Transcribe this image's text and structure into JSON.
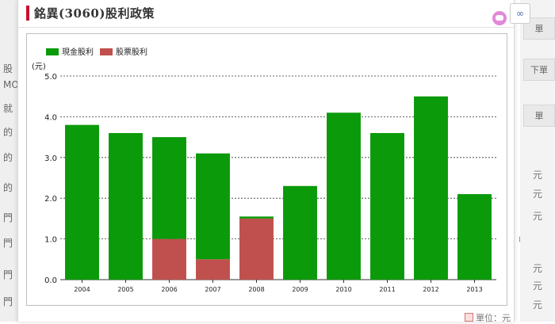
{
  "page": {
    "title": "銘異(3060)股利政策",
    "unit_note": "單位：元"
  },
  "background": {
    "left_fragments": [
      "股",
      "MO",
      "就",
      "的",
      "的",
      "的",
      "門",
      "門",
      "門",
      "門"
    ],
    "right_tabs": [
      "單",
      "下單",
      "單"
    ],
    "right_glyphs": [
      "元",
      "元",
      "元",
      "元",
      "元",
      "元"
    ]
  },
  "icons": {
    "chat": "chat-bubble-icon",
    "toolbar": "binoculars-icon",
    "unit": "table-icon"
  },
  "colors": {
    "cash": "#0a9a0a",
    "stock": "#c0504d",
    "accent": "#c8102e"
  },
  "chart_data": {
    "type": "bar",
    "stacked": true,
    "categories": [
      "2004",
      "2005",
      "2006",
      "2007",
      "2008",
      "2009",
      "2010",
      "2011",
      "2012",
      "2013"
    ],
    "series": [
      {
        "name": "現金股利",
        "values": [
          3.8,
          3.6,
          2.5,
          2.6,
          0.05,
          2.3,
          4.1,
          3.6,
          4.5,
          2.1
        ],
        "color": "#0a9a0a"
      },
      {
        "name": "股票股利",
        "values": [
          0,
          0,
          1.0,
          0.5,
          1.5,
          0,
          0,
          0,
          0,
          0
        ],
        "color": "#c0504d"
      }
    ],
    "ylabel": "(元)",
    "ylim": [
      0,
      5
    ],
    "yticks": [
      "0.0",
      "1.0",
      "2.0",
      "3.0",
      "4.0",
      "5.0"
    ],
    "grid": true,
    "legend_position": "top-left"
  }
}
